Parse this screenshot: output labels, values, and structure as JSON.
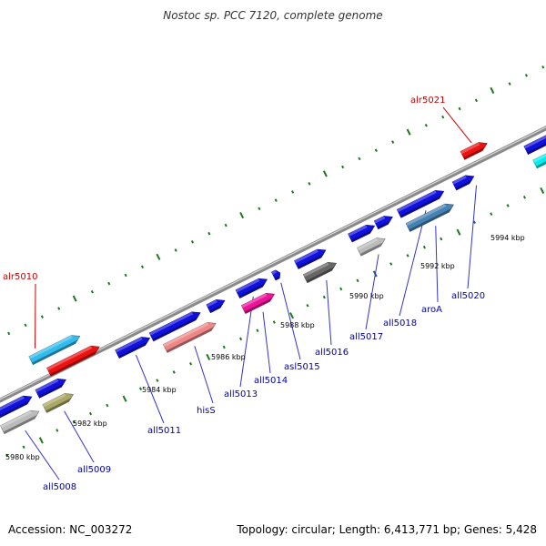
{
  "title": "Nostoc sp. PCC 7120, complete genome",
  "footer": {
    "accession": "Accession: NC_003272",
    "summary": "Topology: circular; Length: 6,413,771 bp; Genes: 5,428"
  },
  "colors": {
    "backbone": "#8a8a8a",
    "tick": "#1a7a1a",
    "label_blue": "#0000aa",
    "label_red": "#cc0000",
    "leader": "#3333cc",
    "leader_red": "#cc0000"
  },
  "scale_labels": [
    "5980 kbp",
    "5982 kbp",
    "5984 kbp",
    "5986 kbp",
    "5988 kbp",
    "5990 kbp",
    "5992 kbp",
    "5994 kbp"
  ],
  "genes": [
    {
      "name": "alr5010",
      "strand": "forward",
      "color": "#33bbee",
      "labeled": true
    },
    {
      "name": "",
      "strand": "forward",
      "color": "#ee1111",
      "labeled": false
    },
    {
      "name": "all5008",
      "strand": "reverse",
      "color": "#1111dd",
      "labeled": true
    },
    {
      "name": "",
      "strand": "reverse",
      "color": "#bbbbbb",
      "labeled": false
    },
    {
      "name": "all5009",
      "strand": "reverse",
      "color": "#aaa866",
      "labeled": true
    },
    {
      "name": "",
      "strand": "reverse",
      "color": "#1111dd",
      "labeled": false
    },
    {
      "name": "all5011",
      "strand": "reverse",
      "color": "#1111dd",
      "labeled": true
    },
    {
      "name": "",
      "strand": "reverse",
      "color": "#1111dd",
      "labeled": false
    },
    {
      "name": "hisS",
      "strand": "reverse",
      "color": "#ee8888",
      "labeled": true
    },
    {
      "name": "",
      "strand": "reverse",
      "color": "#1111dd",
      "labeled": false
    },
    {
      "name": "all5013",
      "strand": "reverse",
      "color": "#1111dd",
      "labeled": true
    },
    {
      "name": "all5014",
      "strand": "reverse",
      "color": "#ee1199",
      "labeled": true
    },
    {
      "name": "asl5015",
      "strand": "reverse",
      "color": "#1111dd",
      "labeled": true
    },
    {
      "name": "",
      "strand": "reverse",
      "color": "#1111dd",
      "labeled": false
    },
    {
      "name": "all5016",
      "strand": "reverse",
      "color": "#666666",
      "labeled": true
    },
    {
      "name": "",
      "strand": "reverse",
      "color": "#1111dd",
      "labeled": false
    },
    {
      "name": "all5017",
      "strand": "reverse",
      "color": "#bbbbbb",
      "labeled": true
    },
    {
      "name": "all5018",
      "strand": "reverse",
      "color": "#1111dd",
      "labeled": true
    },
    {
      "name": "",
      "strand": "reverse",
      "color": "#1111dd",
      "labeled": false
    },
    {
      "name": "aroA",
      "strand": "reverse",
      "color": "#4682b4",
      "labeled": true
    },
    {
      "name": "",
      "strand": "reverse",
      "color": "#1111dd",
      "labeled": false
    },
    {
      "name": "alr5021",
      "strand": "forward",
      "color": "#ee1111",
      "labeled": true
    },
    {
      "name": "all5020",
      "strand": "reverse",
      "color": "#1111dd",
      "labeled": true
    },
    {
      "name": "",
      "strand": "reverse",
      "color": "#00eeee",
      "labeled": false
    }
  ]
}
